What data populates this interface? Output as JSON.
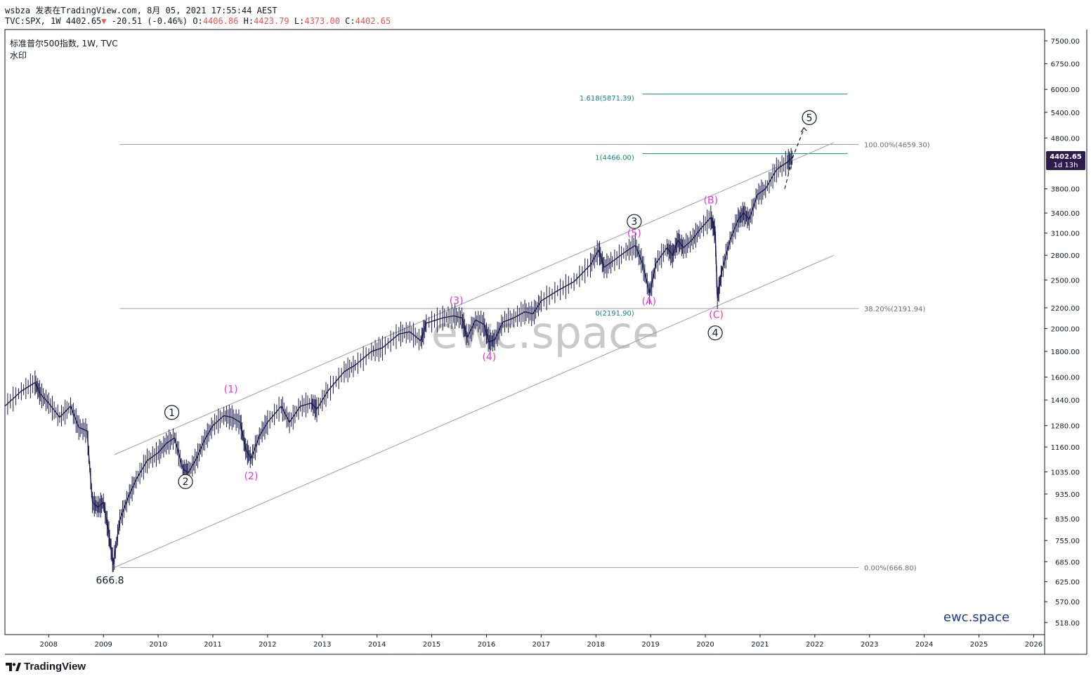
{
  "header": {
    "line1": "wsbza 发表在TradingView.com, 8月 05, 2021 17:55:44 AEST",
    "line2_symbol": "TVC:SPX, 1W 4402.65",
    "line2_change": "-20.51 (-0.46%)",
    "o_label": "O:",
    "o_value": "4406.86",
    "h_label": "H:",
    "h_value": "4423.79",
    "l_label": "L:",
    "l_value": "4373.00",
    "c_label": "C:",
    "c_value": "4402.65"
  },
  "legend": {
    "title": "标准普尔500指数, 1W, TVC",
    "watermark_label": "水印"
  },
  "watermark": "ewc.space",
  "brand_small": "ewc.space",
  "logo": "TradingView",
  "colors": {
    "candle": "#1a1a4d",
    "wave_magenta": "#e535e5",
    "fib_teal": "#138484",
    "channel": "#9e9e9e",
    "price_tag_bg": "#2d1b4e"
  },
  "chart_data": {
    "type": "line",
    "log_scale": true,
    "ylim": [
      490,
      7900
    ],
    "xlim": [
      2007.2,
      2026.2
    ],
    "y_ticks": [
      "518.00",
      "570.00",
      "625.00",
      "685.00",
      "755.00",
      "835.00",
      "935.00",
      "1035.00",
      "1160.00",
      "1280.00",
      "1440.00",
      "1600.00",
      "1800.00",
      "2000.00",
      "2200.00",
      "2500.00",
      "2800.00",
      "3100.00",
      "3400.00",
      "3800.00",
      "4800.00",
      "5400.00",
      "6000.00",
      "6750.00",
      "7500.00"
    ],
    "x_ticks": [
      "2008",
      "2009",
      "2010",
      "2011",
      "2012",
      "2013",
      "2014",
      "2015",
      "2016",
      "2017",
      "2018",
      "2019",
      "2020",
      "2021",
      "2022",
      "2023",
      "2024",
      "2025",
      "2026"
    ],
    "series": [
      {
        "points": [
          [
            2007.2,
            1400
          ],
          [
            2007.5,
            1500
          ],
          [
            2007.75,
            1560
          ],
          [
            2007.85,
            1480
          ],
          [
            2008.0,
            1420
          ],
          [
            2008.2,
            1330
          ],
          [
            2008.4,
            1400
          ],
          [
            2008.55,
            1270
          ],
          [
            2008.7,
            1250
          ],
          [
            2008.8,
            900
          ],
          [
            2008.9,
            880
          ],
          [
            2009.0,
            900
          ],
          [
            2009.1,
            780
          ],
          [
            2009.18,
            676
          ],
          [
            2009.3,
            830
          ],
          [
            2009.45,
            920
          ],
          [
            2009.6,
            1000
          ],
          [
            2009.8,
            1090
          ],
          [
            2010.0,
            1130
          ],
          [
            2010.15,
            1180
          ],
          [
            2010.3,
            1210
          ],
          [
            2010.45,
            1050
          ],
          [
            2010.55,
            1030
          ],
          [
            2010.7,
            1100
          ],
          [
            2010.85,
            1200
          ],
          [
            2011.0,
            1280
          ],
          [
            2011.2,
            1340
          ],
          [
            2011.35,
            1330
          ],
          [
            2011.5,
            1300
          ],
          [
            2011.6,
            1150
          ],
          [
            2011.7,
            1100
          ],
          [
            2011.85,
            1220
          ],
          [
            2012.0,
            1300
          ],
          [
            2012.25,
            1400
          ],
          [
            2012.4,
            1300
          ],
          [
            2012.6,
            1400
          ],
          [
            2012.8,
            1420
          ],
          [
            2012.9,
            1380
          ],
          [
            2013.1,
            1500
          ],
          [
            2013.4,
            1640
          ],
          [
            2013.6,
            1690
          ],
          [
            2013.9,
            1800
          ],
          [
            2014.1,
            1830
          ],
          [
            2014.4,
            1950
          ],
          [
            2014.6,
            1970
          ],
          [
            2014.8,
            1890
          ],
          [
            2014.9,
            2050
          ],
          [
            2015.2,
            2100
          ],
          [
            2015.4,
            2120
          ],
          [
            2015.55,
            2100
          ],
          [
            2015.65,
            1920
          ],
          [
            2015.8,
            2080
          ],
          [
            2015.95,
            2040
          ],
          [
            2016.05,
            1880
          ],
          [
            2016.15,
            1900
          ],
          [
            2016.3,
            2060
          ],
          [
            2016.5,
            2100
          ],
          [
            2016.7,
            2160
          ],
          [
            2016.85,
            2140
          ],
          [
            2017.0,
            2270
          ],
          [
            2017.3,
            2380
          ],
          [
            2017.6,
            2480
          ],
          [
            2017.9,
            2680
          ],
          [
            2018.05,
            2870
          ],
          [
            2018.15,
            2650
          ],
          [
            2018.3,
            2720
          ],
          [
            2018.55,
            2850
          ],
          [
            2018.72,
            2930
          ],
          [
            2018.85,
            2700
          ],
          [
            2018.98,
            2350
          ],
          [
            2019.1,
            2700
          ],
          [
            2019.3,
            2900
          ],
          [
            2019.4,
            2800
          ],
          [
            2019.5,
            3000
          ],
          [
            2019.6,
            2900
          ],
          [
            2019.75,
            3000
          ],
          [
            2019.9,
            3150
          ],
          [
            2020.1,
            3330
          ],
          [
            2020.18,
            3100
          ],
          [
            2020.22,
            2300
          ],
          [
            2020.3,
            2600
          ],
          [
            2020.45,
            3000
          ],
          [
            2020.6,
            3300
          ],
          [
            2020.7,
            3400
          ],
          [
            2020.8,
            3300
          ],
          [
            2020.95,
            3700
          ],
          [
            2021.1,
            3800
          ],
          [
            2021.3,
            4150
          ],
          [
            2021.5,
            4300
          ],
          [
            2021.6,
            4402
          ]
        ]
      }
    ],
    "fib_retracement": [
      {
        "label": "100.00%(4659.30)",
        "price": 4659.3
      },
      {
        "label": "38.20%(2191.94)",
        "price": 2191.94
      },
      {
        "label": "0.00%(666.80)",
        "price": 666.8
      }
    ],
    "fib_extension": [
      {
        "label": "1.618(5871.39)",
        "price": 5871.39
      },
      {
        "label": "1(4466.00)",
        "price": 4466
      },
      {
        "label": "0(2191.90)",
        "price": 2191.9
      }
    ],
    "waves_circled": [
      {
        "label": "1",
        "x": 2010.25,
        "y": 1360
      },
      {
        "label": "2",
        "x": 2010.5,
        "y": 990
      },
      {
        "label": "3",
        "x": 2018.7,
        "y": 3270
      },
      {
        "label": "4",
        "x": 2020.18,
        "y": 1960
      },
      {
        "label": "5",
        "x": 2021.9,
        "y": 5270
      }
    ],
    "waves_magenta": [
      {
        "label": "(1)",
        "x": 2011.33,
        "y": 1490
      },
      {
        "label": "(2)",
        "x": 2011.7,
        "y": 1000
      },
      {
        "label": "(3)",
        "x": 2015.45,
        "y": 2240
      },
      {
        "label": "(4)",
        "x": 2016.05,
        "y": 1730
      },
      {
        "label": "(5)",
        "x": 2018.7,
        "y": 3050
      },
      {
        "label": "(A)",
        "x": 2018.97,
        "y": 2230
      },
      {
        "label": "(B)",
        "x": 2020.1,
        "y": 3550
      },
      {
        "label": "(C)",
        "x": 2020.2,
        "y": 2100
      }
    ],
    "low_label": "666.8",
    "current_price": "4402.65",
    "countdown": "1d 13h"
  }
}
